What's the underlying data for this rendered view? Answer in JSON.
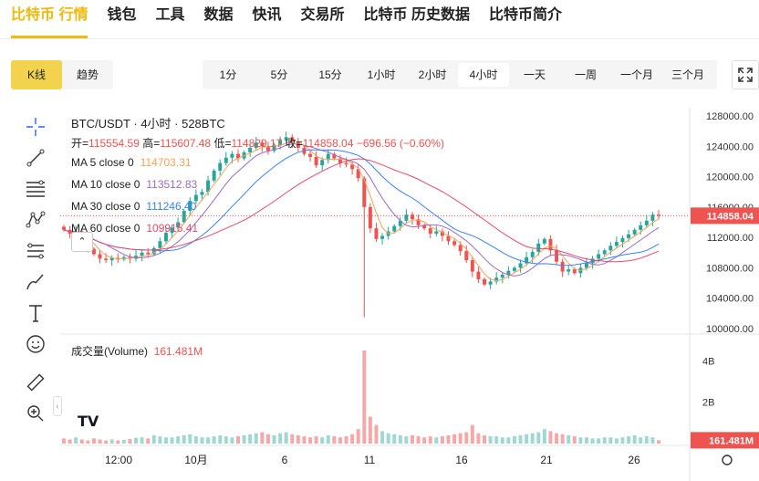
{
  "nav": {
    "items": [
      "比特币 行情",
      "钱包",
      "工具",
      "数据",
      "快讯",
      "交易所",
      "比特币 历史数据",
      "比特币简介"
    ],
    "active": 0
  },
  "chart_type_tabs": {
    "items": [
      "K线",
      "趋势"
    ],
    "active": 0
  },
  "intervals": {
    "items": [
      "1分",
      "5分",
      "15分",
      "1小时",
      "2小时",
      "4小时",
      "一天",
      "一周",
      "一个月",
      "三个月"
    ],
    "active": 5
  },
  "tools": [
    "crosshair-icon",
    "trend-line-icon",
    "fib-lines-icon",
    "pattern-icon",
    "projection-icon",
    "brush-icon",
    "text-icon",
    "emoji-icon",
    "ruler-icon",
    "zoom-in-icon"
  ],
  "colors": {
    "up": "#26a69a",
    "down": "#ef5350",
    "ma5": "#f7a35c",
    "ma10": "#9c6ac4",
    "ma30": "#3b82f6",
    "ma60": "#e24c6b",
    "accent": "#f0b90b"
  },
  "header": {
    "symbol": "BTC/USDT · 4小时 · 528BTC",
    "ohlc": {
      "open_label": "开",
      "open": "115554.59",
      "high_label": "高",
      "high": "115607.48",
      "low_label": "低",
      "low": "114829.17",
      "close_label": "收",
      "close": "114858.04",
      "change": "−696.56 (−0.60%)"
    }
  },
  "ma_legend": [
    {
      "label": "MA 5 close 0",
      "value": "114703.31",
      "color": "#f7a35c"
    },
    {
      "label": "MA 10 close 0",
      "value": "113512.83",
      "color": "#9c6ac4"
    },
    {
      "label": "MA 30 close 0",
      "value": "111246.40",
      "color": "#3b82f6"
    },
    {
      "label": "MA 60 close 0",
      "value": "109915.41",
      "color": "#e24c6b"
    }
  ],
  "price_axis": [
    "128000.00",
    "124000.00",
    "120000.00",
    "116000.00",
    "112000.00",
    "108000.00",
    "104000.00",
    "100000.00"
  ],
  "last_price": "114858.04",
  "volume": {
    "label": "成交量(Volume)",
    "value": "161.481M",
    "axis": [
      "4B",
      "2B"
    ],
    "last": "161.481M"
  },
  "time_axis": [
    "12:00",
    "10月",
    "6",
    "11",
    "16",
    "21",
    "26"
  ],
  "chart_data": {
    "type": "candlestick",
    "ylim": [
      100000,
      128000
    ],
    "closes": [
      113000,
      112500,
      112800,
      111800,
      110500,
      109800,
      109200,
      109000,
      109300,
      109100,
      109400,
      109200,
      109600,
      110000,
      109800,
      110600,
      111500,
      112600,
      113300,
      114000,
      115500,
      116800,
      117600,
      118000,
      119500,
      120800,
      121800,
      122500,
      123000,
      122400,
      123200,
      123800,
      124500,
      124000,
      123400,
      124200,
      124800,
      125200,
      124500,
      123800,
      123000,
      122600,
      121500,
      122200,
      123000,
      122400,
      121800,
      121600,
      121000,
      119800,
      116000,
      113200,
      111800,
      112200,
      112800,
      113500,
      114200,
      115000,
      114400,
      113600,
      113200,
      112500,
      112800,
      112200,
      111500,
      111000,
      110200,
      109000,
      107500,
      106500,
      105800,
      106200,
      106700,
      107100,
      107600,
      108000,
      108600,
      109400,
      110100,
      111200,
      111800,
      110300,
      108800,
      107500,
      107800,
      107300,
      108000,
      108600,
      109200,
      109800,
      110300,
      110900,
      111400,
      111900,
      112400,
      113000,
      113600,
      114200,
      115000,
      114858
    ],
    "volumes_b": [
      0.25,
      0.2,
      0.3,
      0.2,
      0.15,
      0.25,
      0.2,
      0.15,
      0.2,
      0.15,
      0.18,
      0.22,
      0.28,
      0.3,
      0.25,
      0.4,
      0.35,
      0.3,
      0.3,
      0.35,
      0.4,
      0.45,
      0.35,
      0.3,
      0.3,
      0.35,
      0.4,
      0.35,
      0.3,
      0.35,
      0.4,
      0.45,
      0.5,
      0.55,
      0.45,
      0.4,
      0.5,
      0.55,
      0.45,
      0.4,
      0.35,
      0.3,
      0.35,
      0.3,
      0.4,
      0.35,
      0.3,
      0.35,
      0.45,
      0.7,
      4.5,
      1.3,
      0.9,
      0.6,
      0.5,
      0.45,
      0.4,
      0.35,
      0.4,
      0.35,
      0.3,
      0.35,
      0.3,
      0.35,
      0.4,
      0.45,
      0.5,
      0.55,
      0.9,
      0.5,
      0.4,
      0.35,
      0.35,
      0.3,
      0.3,
      0.35,
      0.4,
      0.45,
      0.5,
      0.55,
      0.7,
      0.6,
      0.5,
      0.45,
      0.4,
      0.35,
      0.3,
      0.3,
      0.25,
      0.25,
      0.3,
      0.3,
      0.25,
      0.3,
      0.35,
      0.4,
      0.3,
      0.35,
      0.3,
      0.16
    ]
  }
}
